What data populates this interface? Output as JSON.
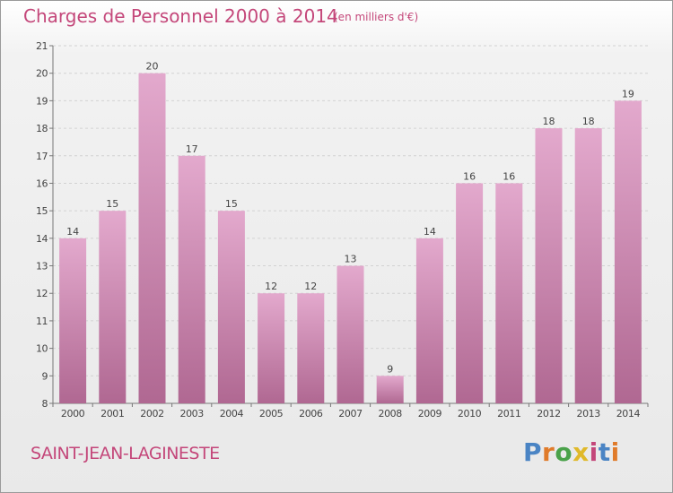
{
  "header": {
    "title": "Charges de Personnel 2000 à 2014",
    "unit": "(en milliers d'€)"
  },
  "footer": {
    "commune": "SAINT-JEAN-LAGINESTE",
    "logo": "Proxiti"
  },
  "colors": {
    "accent": "#c4477a",
    "bar_top": "#e3a9cd",
    "bar_bottom": "#b06892",
    "logo_letters": [
      "#4a84c4",
      "#e07b2a",
      "#4aa24a",
      "#e0b92a",
      "#c4477a",
      "#4a84c4",
      "#e07b2a"
    ]
  },
  "chart_data": {
    "type": "bar",
    "title": "Charges de Personnel 2000 à 2014",
    "subtitle": "(en milliers d'€)",
    "categories": [
      "2000",
      "2001",
      "2002",
      "2003",
      "2004",
      "2005",
      "2006",
      "2007",
      "2008",
      "2009",
      "2010",
      "2011",
      "2012",
      "2013",
      "2014"
    ],
    "values": [
      14,
      15,
      20,
      17,
      15,
      12,
      12,
      13,
      9,
      14,
      16,
      16,
      18,
      18,
      19
    ],
    "ylim": [
      8,
      21
    ],
    "yticks": [
      8,
      9,
      10,
      11,
      12,
      13,
      14,
      15,
      16,
      17,
      18,
      19,
      20,
      21
    ],
    "grid": true,
    "legend": "none"
  }
}
